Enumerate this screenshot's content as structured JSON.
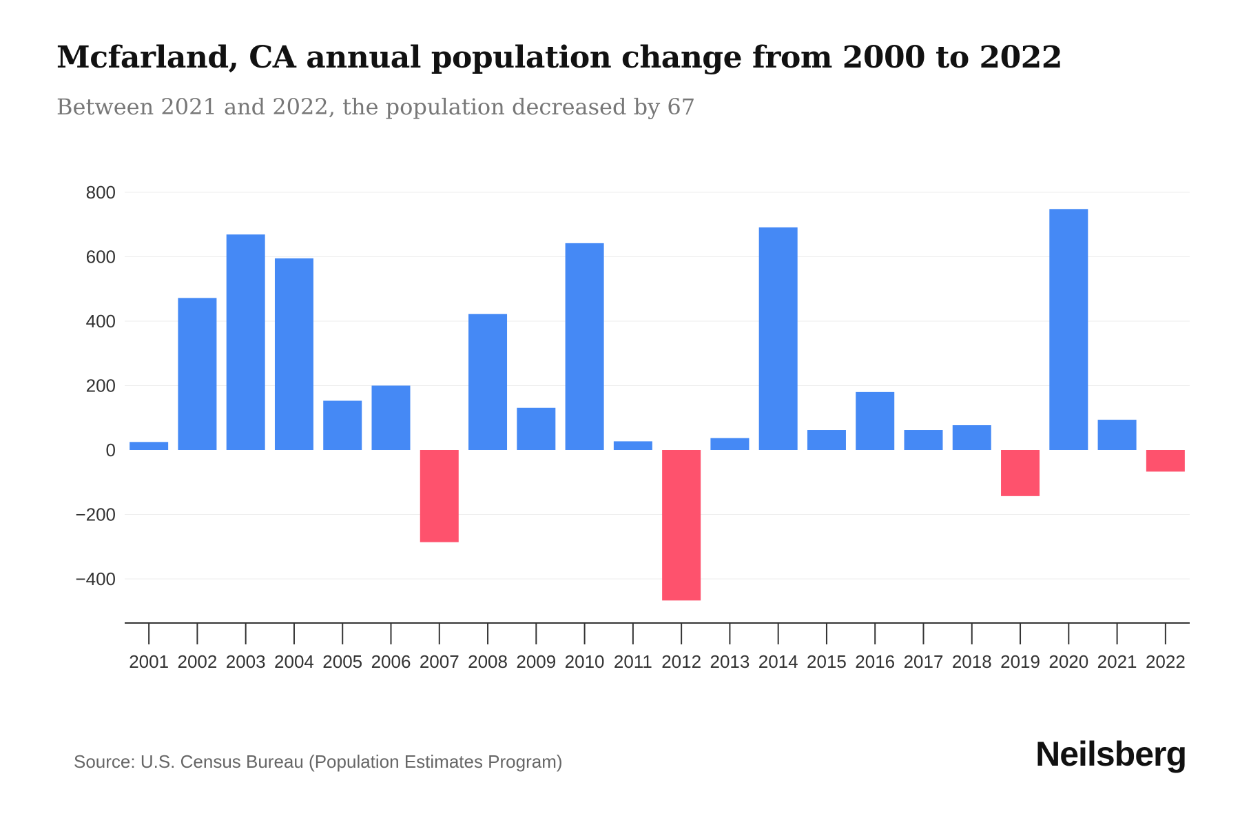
{
  "title": "Mcfarland, CA annual population change from 2000 to 2022",
  "subtitle": "Between 2021 and 2022, the population decreased by 67",
  "source": "Source: U.S. Census Bureau (Population Estimates Program)",
  "logo": "Neilsberg",
  "colors": {
    "positive": "#4589f5",
    "negative": "#fe526d",
    "grid": "#eeeeee",
    "axis": "#333333"
  },
  "chart_data": {
    "type": "bar",
    "title": "Mcfarland, CA annual population change from 2000 to 2022",
    "xlabel": "",
    "ylabel": "",
    "ylim": [
      -500,
      800
    ],
    "yticks": [
      800,
      600,
      400,
      200,
      0,
      -200,
      -400
    ],
    "ytick_labels": [
      "800",
      "600",
      "400",
      "200",
      "0",
      "−200",
      "−400"
    ],
    "grid": true,
    "categories": [
      "2001",
      "2002",
      "2003",
      "2004",
      "2005",
      "2006",
      "2007",
      "2008",
      "2009",
      "2010",
      "2011",
      "2012",
      "2013",
      "2014",
      "2015",
      "2016",
      "2017",
      "2018",
      "2019",
      "2020",
      "2021",
      "2022"
    ],
    "values": [
      25,
      472,
      669,
      595,
      153,
      200,
      -286,
      422,
      131,
      642,
      27,
      -467,
      37,
      691,
      62,
      180,
      62,
      77,
      -143,
      748,
      94,
      -67
    ]
  }
}
